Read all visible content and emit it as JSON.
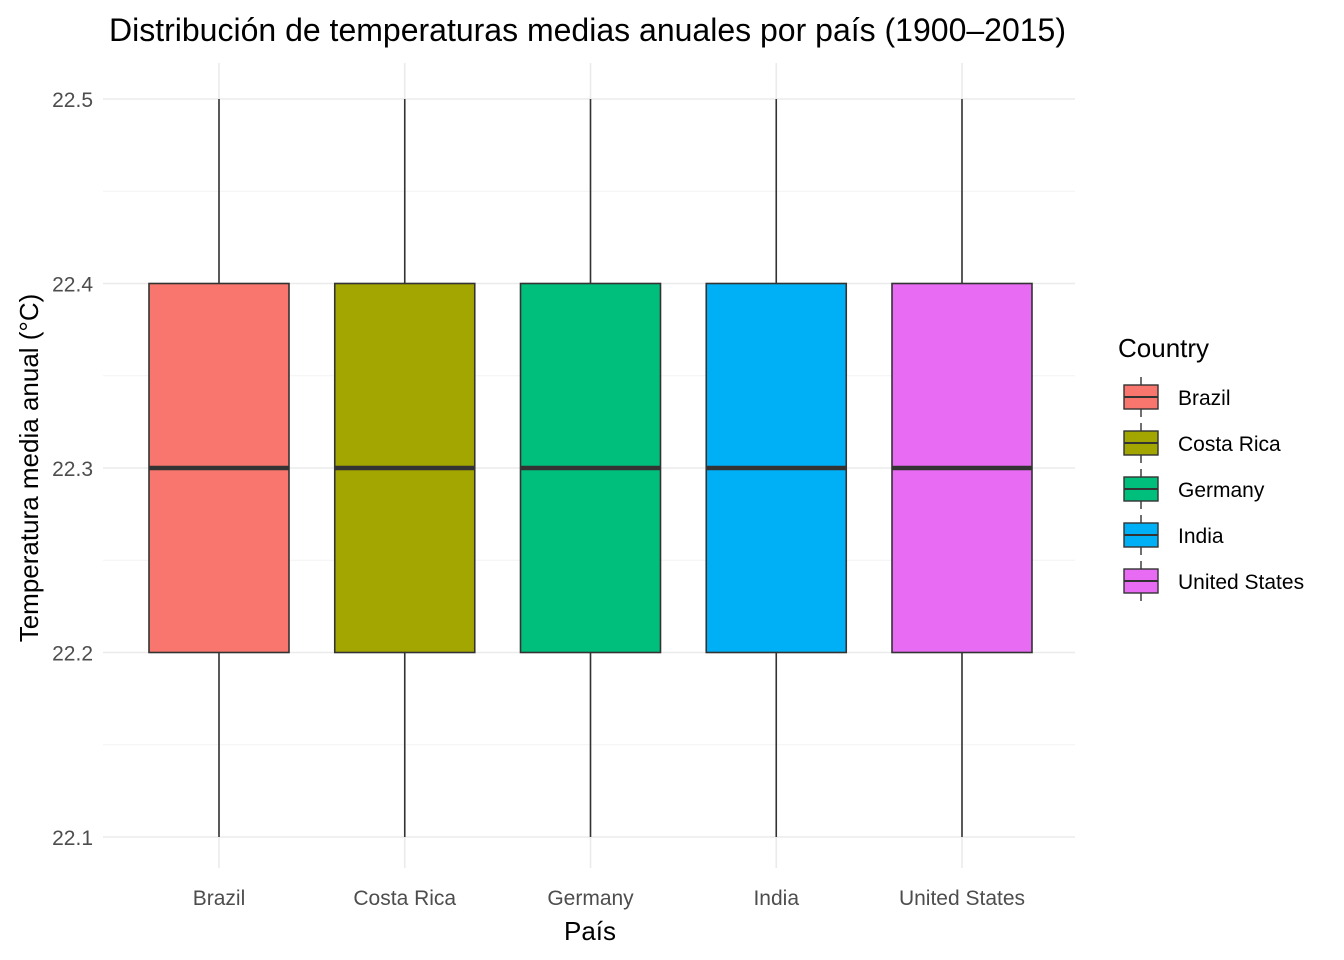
{
  "chart_data": {
    "type": "box",
    "title": "Distribución de temperaturas medias anuales por país (1900–2015)",
    "xlabel": "País",
    "ylabel": "Temperatura media anual (°C)",
    "ylim": [
      22.08,
      22.52
    ],
    "yticks": [
      "22.1",
      "22.2",
      "22.3",
      "22.4",
      "22.5"
    ],
    "ytick_values": [
      22.1,
      22.2,
      22.3,
      22.4,
      22.5
    ],
    "grid": true,
    "legend": {
      "title": "Country",
      "position": "right"
    },
    "categories": [
      "Brazil",
      "Costa Rica",
      "Germany",
      "India",
      "United States"
    ],
    "series": [
      {
        "name": "Brazil",
        "color": "#F8766D",
        "min": 22.1,
        "q1": 22.2,
        "median": 22.3,
        "q3": 22.4,
        "max": 22.5
      },
      {
        "name": "Costa Rica",
        "color": "#A3A500",
        "min": 22.1,
        "q1": 22.2,
        "median": 22.3,
        "q3": 22.4,
        "max": 22.5
      },
      {
        "name": "Germany",
        "color": "#00BF7D",
        "min": 22.1,
        "q1": 22.2,
        "median": 22.3,
        "q3": 22.4,
        "max": 22.5
      },
      {
        "name": "India",
        "color": "#00B0F6",
        "min": 22.1,
        "q1": 22.2,
        "median": 22.3,
        "q3": 22.4,
        "max": 22.5
      },
      {
        "name": "United States",
        "color": "#E76BF3",
        "min": 22.1,
        "q1": 22.2,
        "median": 22.3,
        "q3": 22.4,
        "max": 22.5
      }
    ]
  }
}
